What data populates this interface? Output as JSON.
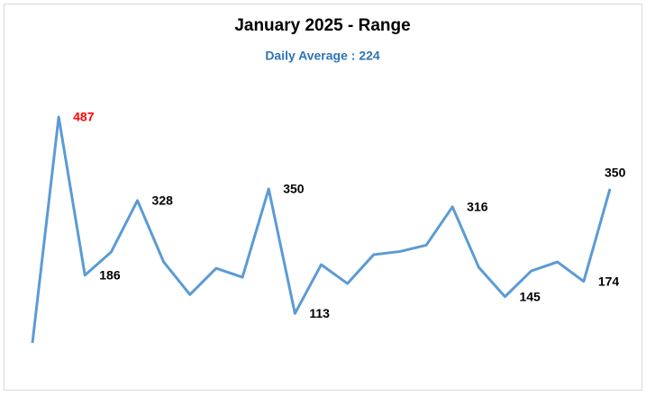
{
  "chart_data": {
    "type": "line",
    "title": "January 2025 - Range",
    "subtitle": "Daily Average : 224",
    "subtitle_color": "#2e75b6",
    "color": "#5b9bd5",
    "max_label_color": "#ff0000",
    "values": [
      57,
      487,
      186,
      230,
      328,
      211,
      149,
      199,
      182,
      350,
      113,
      206,
      170,
      225,
      231,
      243,
      316,
      201,
      145,
      194,
      211,
      174,
      350
    ],
    "value_labels": [
      null,
      487,
      186,
      null,
      328,
      null,
      null,
      null,
      null,
      350,
      113,
      null,
      null,
      null,
      null,
      null,
      316,
      null,
      145,
      null,
      null,
      174,
      350
    ]
  }
}
